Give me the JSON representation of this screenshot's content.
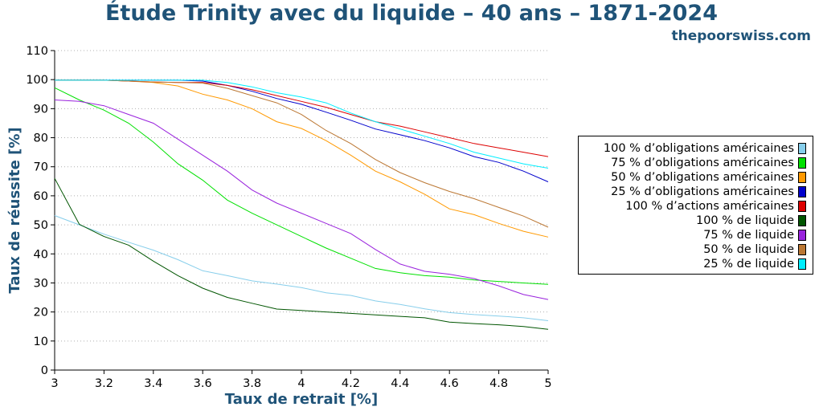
{
  "header": {
    "title": "Étude Trinity avec du liquide – 40 ans – 1871-2024",
    "site": "thepoorswiss.com"
  },
  "chart_data": {
    "type": "line",
    "title": "Étude Trinity avec du liquide – 40 ans – 1871-2024",
    "xlabel": "Taux de retrait [%]",
    "ylabel": "Taux de réussite [%]",
    "xlim": [
      3,
      5
    ],
    "ylim": [
      0,
      110
    ],
    "grid": "horizontal dotted",
    "legend_placement": "right",
    "x": [
      3.0,
      3.1,
      3.2,
      3.3,
      3.4,
      3.5,
      3.6,
      3.7,
      3.8,
      3.9,
      4.0,
      4.1,
      4.2,
      4.3,
      4.4,
      4.5,
      4.6,
      4.7,
      4.8,
      4.9,
      5.0
    ],
    "xticks": [
      "3",
      "3.2",
      "3.4",
      "3.6",
      "3.8",
      "4",
      "4.2",
      "4.4",
      "4.6",
      "4.8",
      "5"
    ],
    "yticks": [
      "0",
      "10",
      "20",
      "30",
      "40",
      "50",
      "60",
      "70",
      "80",
      "90",
      "100",
      "110"
    ],
    "series": [
      {
        "name": "100 % d’obligations américaines",
        "color": "#87ceeb",
        "values": [
          53.2,
          50.0,
          46.8,
          44.0,
          41.3,
          38.0,
          34.2,
          32.5,
          30.7,
          29.6,
          28.4,
          26.6,
          25.7,
          23.8,
          22.6,
          21.1,
          19.8,
          19.1,
          18.6,
          18.0,
          17.0
        ]
      },
      {
        "name": "75 % d’obligations américaines",
        "color": "#00e000",
        "values": [
          97.2,
          93.0,
          89.5,
          85.0,
          78.5,
          71.0,
          65.4,
          58.5,
          54.0,
          50.0,
          46.0,
          42.0,
          38.5,
          35.0,
          33.5,
          32.5,
          32.0,
          31.0,
          30.5,
          30.0,
          29.5
        ]
      },
      {
        "name": "50 % d’obligations américaines",
        "color": "#ff9900",
        "values": [
          99.8,
          99.8,
          99.8,
          99.5,
          99.0,
          97.8,
          95.0,
          93.0,
          90.0,
          85.5,
          83.2,
          79.0,
          74.0,
          68.5,
          64.8,
          60.5,
          55.5,
          53.5,
          50.5,
          47.8,
          45.8
        ]
      },
      {
        "name": "25 % d’obligations américaines",
        "color": "#0000cc",
        "values": [
          99.8,
          99.8,
          99.8,
          99.8,
          99.8,
          99.8,
          99.5,
          98.0,
          96.0,
          93.5,
          91.5,
          88.8,
          86.0,
          83.0,
          81.0,
          79.0,
          76.5,
          73.5,
          71.5,
          68.5,
          64.8
        ]
      },
      {
        "name": "100 % d’actions américaines",
        "color": "#dd0000",
        "values": [
          99.8,
          99.8,
          99.8,
          99.5,
          99.2,
          99.0,
          99.0,
          98.0,
          96.5,
          94.5,
          92.5,
          90.5,
          88.0,
          85.5,
          84.0,
          82.0,
          80.0,
          78.0,
          76.5,
          75.0,
          73.5
        ]
      },
      {
        "name": "100 % de liquide",
        "color": "#005500",
        "values": [
          66.0,
          50.2,
          46.0,
          43.0,
          37.5,
          32.5,
          28.2,
          25.0,
          23.0,
          21.0,
          20.5,
          20.0,
          19.5,
          19.0,
          18.5,
          18.0,
          16.5,
          16.0,
          15.6,
          15.0,
          14.0
        ]
      },
      {
        "name": "75 % de liquide",
        "color": "#9922dd",
        "values": [
          93.0,
          92.5,
          91.0,
          88.0,
          85.0,
          79.5,
          74.0,
          68.5,
          62.0,
          57.5,
          54.0,
          50.5,
          47.0,
          41.5,
          36.5,
          34.0,
          33.0,
          31.5,
          29.0,
          26.0,
          24.3
        ]
      },
      {
        "name": "50 % de liquide",
        "color": "#bb7733",
        "values": [
          99.8,
          99.8,
          99.8,
          99.5,
          99.2,
          99.0,
          98.8,
          97.0,
          94.5,
          92.0,
          88.0,
          82.5,
          78.0,
          72.5,
          68.0,
          64.5,
          61.5,
          59.0,
          56.0,
          53.0,
          49.2
        ]
      },
      {
        "name": "25 % de liquide",
        "color": "#00eeff",
        "values": [
          99.8,
          99.8,
          99.8,
          99.8,
          99.8,
          99.8,
          99.8,
          99.0,
          97.5,
          95.5,
          94.0,
          92.0,
          88.5,
          85.5,
          83.0,
          80.5,
          78.0,
          75.0,
          73.0,
          71.0,
          69.5
        ]
      }
    ]
  }
}
